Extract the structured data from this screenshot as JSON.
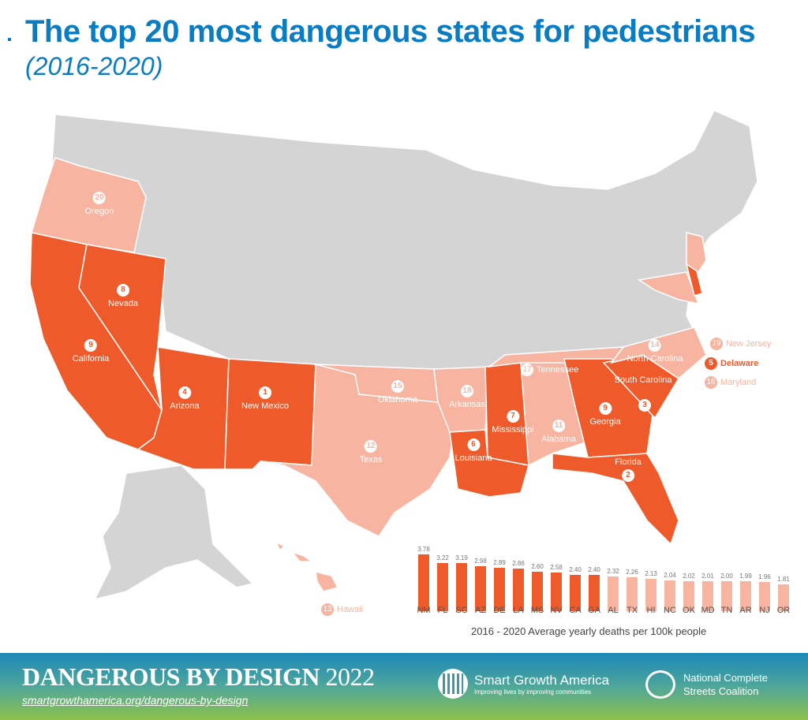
{
  "header": {
    "title": "The top 20 most dangerous states for pedestrians",
    "subtitle": "(2016-2020)"
  },
  "colors": {
    "title": "#0A7CC1",
    "top_10": "#EE5A2A",
    "rank_11_20": "#F7B4A0",
    "other_states": "#D4D4D4"
  },
  "map_labels": [
    {
      "rank": "1",
      "state": "New Mexico"
    },
    {
      "rank": "2",
      "state": "Florida"
    },
    {
      "rank": "3",
      "state": "South Carolina"
    },
    {
      "rank": "4",
      "state": "Arizona"
    },
    {
      "rank": "5",
      "state": "Delaware"
    },
    {
      "rank": "6",
      "state": "Louisiana"
    },
    {
      "rank": "7",
      "state": "Mississippi"
    },
    {
      "rank": "8",
      "state": "Nevada"
    },
    {
      "rank": "9",
      "state": "California"
    },
    {
      "rank": "9",
      "state": "Georgia"
    },
    {
      "rank": "11",
      "state": "Alabama"
    },
    {
      "rank": "12",
      "state": "Texas"
    },
    {
      "rank": "13",
      "state": "Hawaii"
    },
    {
      "rank": "14",
      "state": "North Carolina"
    },
    {
      "rank": "15",
      "state": "Oklahoma"
    },
    {
      "rank": "16",
      "state": "Maryland"
    },
    {
      "rank": "17",
      "state": "Tennessee"
    },
    {
      "rank": "18",
      "state": "Arkansas"
    },
    {
      "rank": "19",
      "state": "New Jersey"
    },
    {
      "rank": "20",
      "state": "Oregon"
    }
  ],
  "chart_data": {
    "type": "bar",
    "title": "The top 20 most dangerous states for pedestrians (2016-2020)",
    "xlabel": "2016 - 2020 Average yearly deaths per 100k people",
    "ylabel": "",
    "categories": [
      "NM",
      "FL",
      "SC",
      "AZ",
      "DE",
      "LA",
      "MS",
      "NV",
      "CA",
      "GA",
      "AL",
      "TX",
      "HI",
      "NC",
      "OK",
      "MD",
      "TN",
      "AR",
      "NJ",
      "OR"
    ],
    "values": [
      3.78,
      3.22,
      3.19,
      2.98,
      2.89,
      2.86,
      2.6,
      2.58,
      2.4,
      2.4,
      2.32,
      2.26,
      2.13,
      2.04,
      2.02,
      2.01,
      2.0,
      1.99,
      1.96,
      1.81
    ],
    "value_labels": [
      "3.78",
      "3.22",
      "3.19",
      "2.98",
      "2.89",
      "2.86",
      "2.60",
      "2.58",
      "2.40",
      "2.40",
      "2.32",
      "2.26",
      "2.13",
      "2.04",
      "2.02",
      "2.01",
      "2.00",
      "1.99",
      "1.96",
      "1.81"
    ],
    "bar_colors": [
      "#EE5A2A",
      "#EE5A2A",
      "#EE5A2A",
      "#EE5A2A",
      "#EE5A2A",
      "#EE5A2A",
      "#EE5A2A",
      "#EE5A2A",
      "#EE5A2A",
      "#EE5A2A",
      "#F7B4A0",
      "#F7B4A0",
      "#F7B4A0",
      "#F7B4A0",
      "#F7B4A0",
      "#F7B4A0",
      "#F7B4A0",
      "#F7B4A0",
      "#F7B4A0",
      "#F7B4A0"
    ],
    "ylim": [
      0,
      4
    ],
    "grid": false
  },
  "footer": {
    "title": "DANGEROUS BY DESIGN",
    "year": "2022",
    "link": "smartgrowthamerica.org/dangerous-by-design",
    "sga_name": "Smart Growth America",
    "sga_tagline": "Improving lives by improving communities",
    "ncsc_line1": "National Complete",
    "ncsc_line2": "Streets Coalition"
  }
}
